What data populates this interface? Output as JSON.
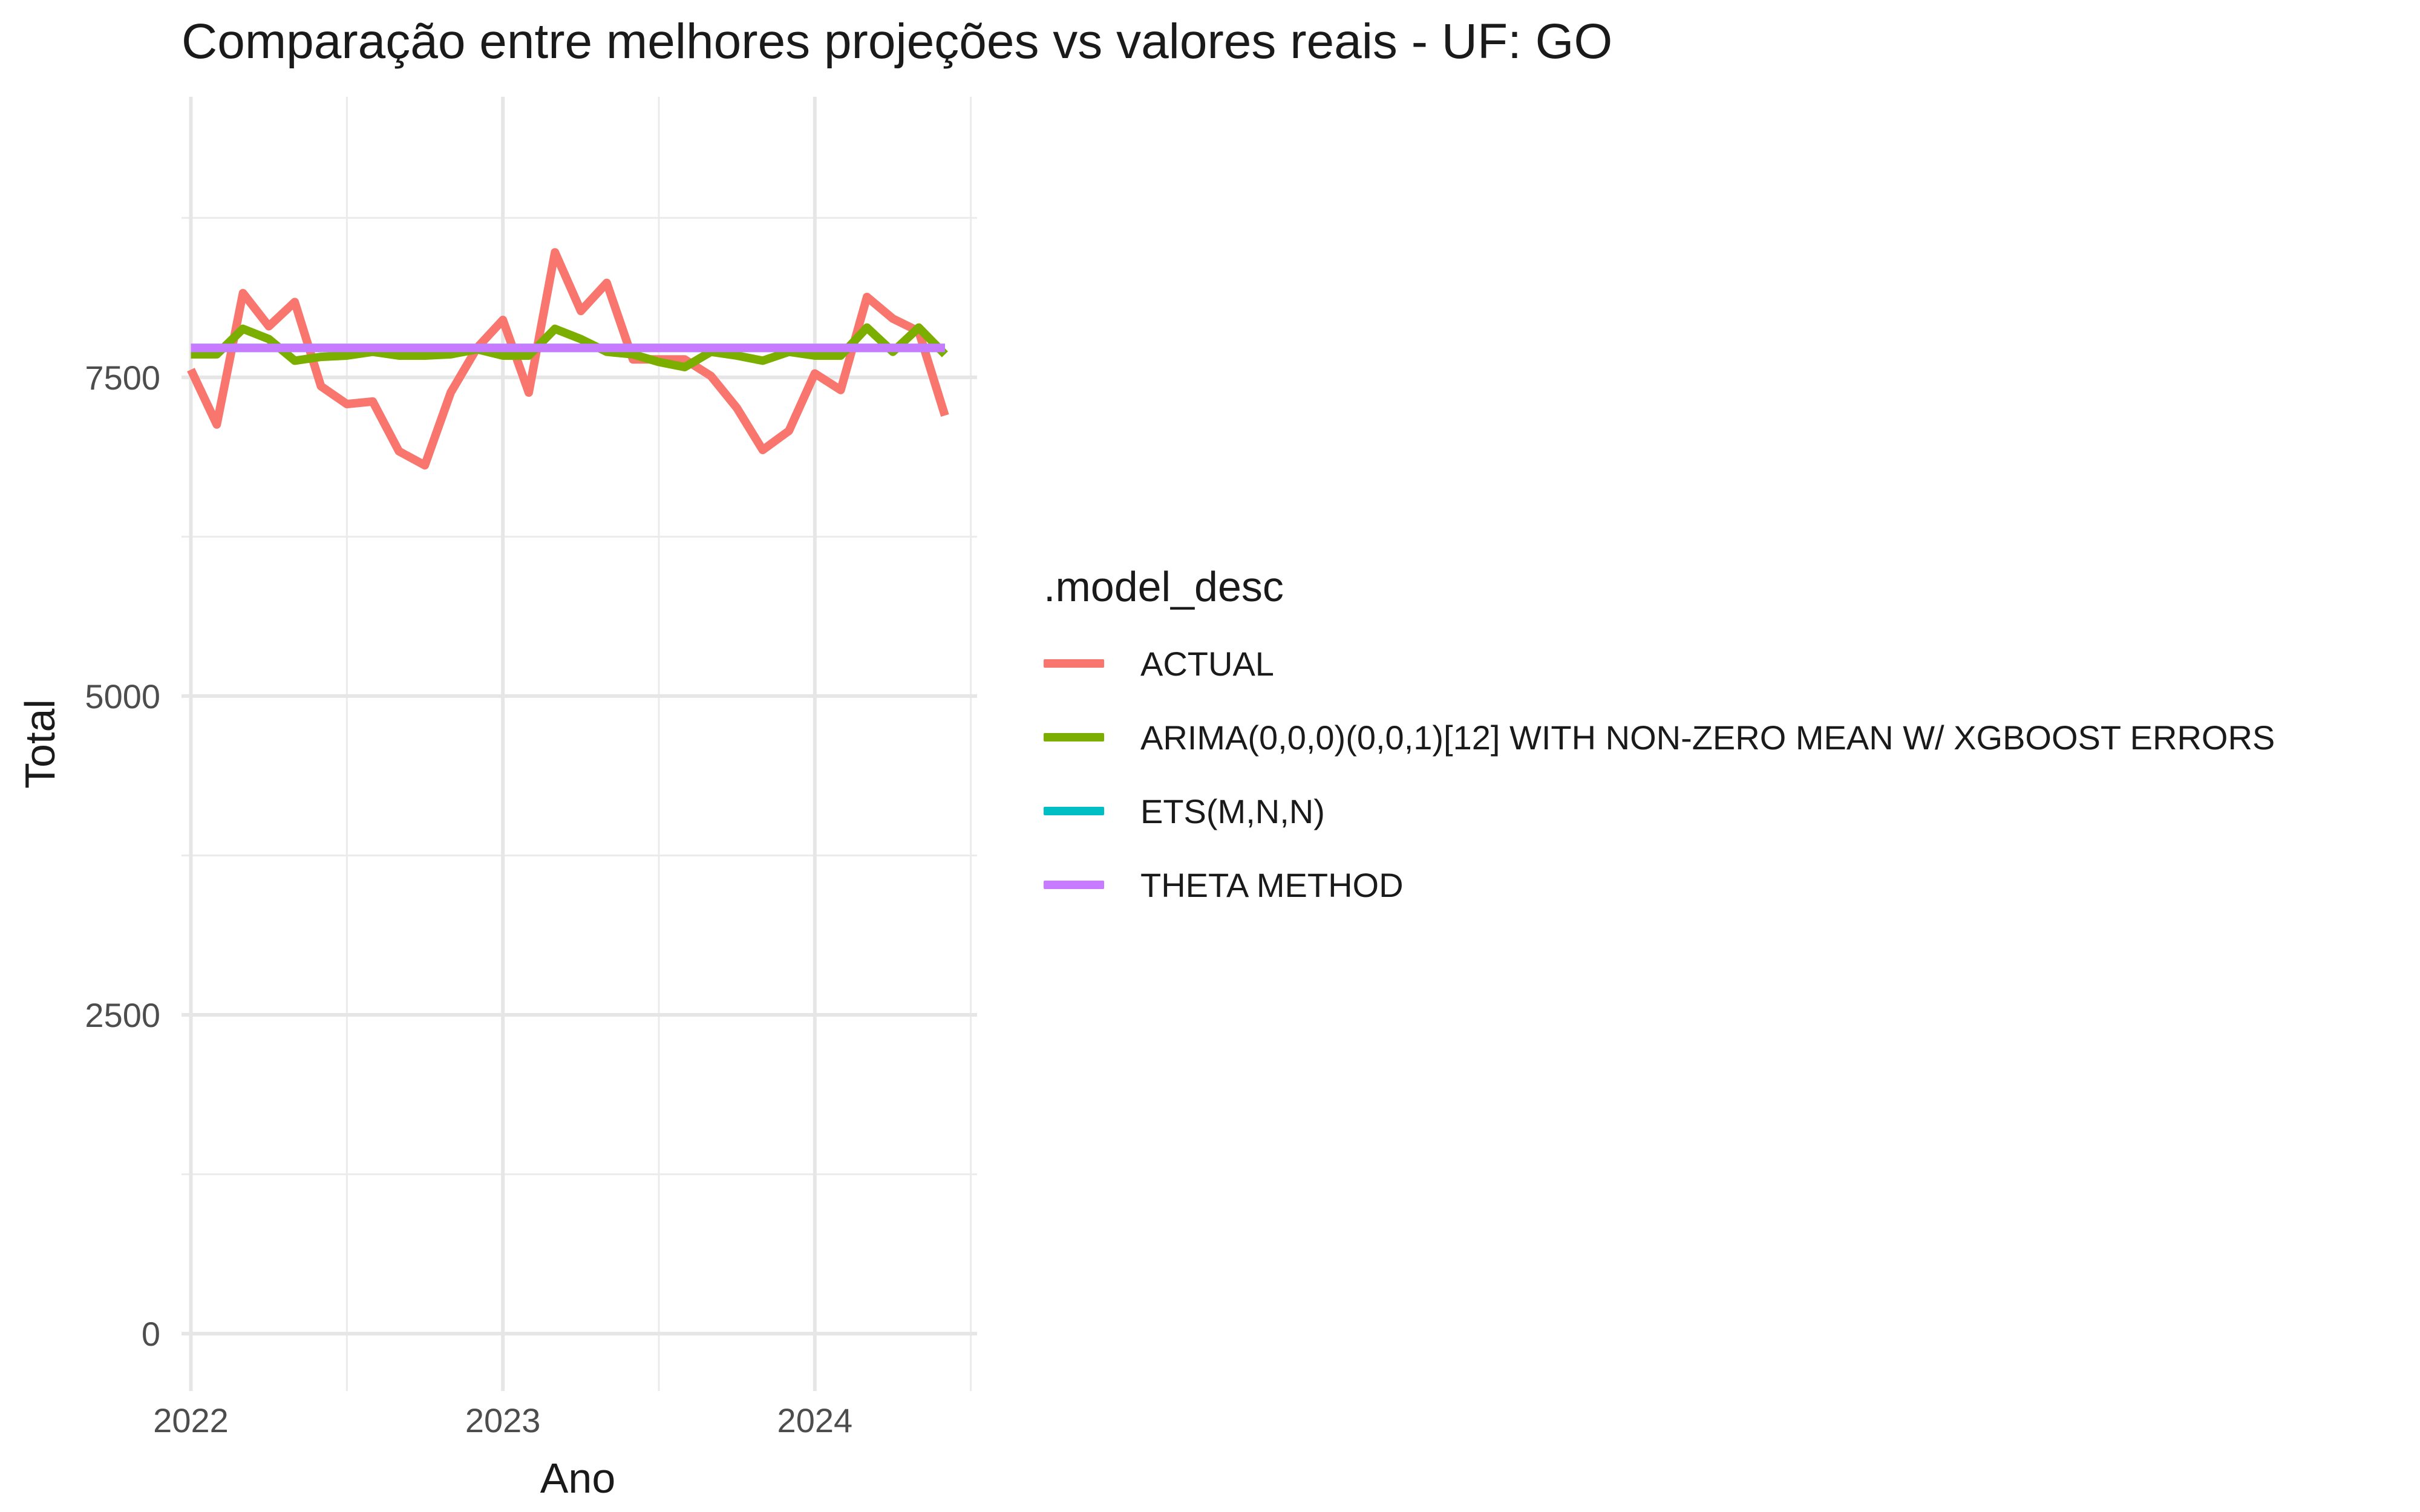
{
  "chart_data": {
    "type": "line",
    "title": "Comparação entre melhores projeções vs valores reais - UF: GO",
    "xlabel": "Ano",
    "ylabel": "Total",
    "xlim": [
      2021.97,
      2024.52
    ],
    "ylim": [
      -450,
      9700
    ],
    "x_ticks": [
      2022,
      2023,
      2024
    ],
    "y_ticks": [
      0,
      2500,
      5000,
      7500
    ],
    "x_tick_labels": [
      "2022",
      "2023",
      "2024"
    ],
    "y_tick_labels": [
      "0",
      "2500",
      "5000",
      "7500"
    ],
    "grid": true,
    "legend_title": ".model_desc",
    "legend_position": "right",
    "series": [
      {
        "name": "ACTUAL",
        "color": "#F8766D",
        "x": [
          2022.0,
          2022.083,
          2022.167,
          2022.25,
          2022.333,
          2022.417,
          2022.5,
          2022.583,
          2022.667,
          2022.75,
          2022.833,
          2022.917,
          2023.0,
          2023.083,
          2023.167,
          2023.25,
          2023.333,
          2023.417,
          2023.5,
          2023.583,
          2023.667,
          2023.75,
          2023.833,
          2023.917,
          2024.0,
          2024.083,
          2024.167,
          2024.25,
          2024.333,
          2024.417
        ],
        "y": [
          7560,
          7130,
          8160,
          7900,
          8090,
          7430,
          7290,
          7310,
          6920,
          6810,
          7380,
          7730,
          7950,
          7380,
          8480,
          8020,
          8240,
          7640,
          7640,
          7640,
          7510,
          7260,
          6930,
          7080,
          7530,
          7400,
          8130,
          7960,
          7860,
          7200
        ]
      },
      {
        "name": "ARIMA(0,0,0)(0,0,1)[12] WITH NON-ZERO MEAN W/ XGBOOST ERRORS",
        "color": "#7CAE00",
        "x": [
          2022.0,
          2022.083,
          2022.167,
          2022.25,
          2022.333,
          2022.417,
          2022.5,
          2022.583,
          2022.667,
          2022.75,
          2022.833,
          2022.917,
          2023.0,
          2023.083,
          2023.167,
          2023.25,
          2023.333,
          2023.417,
          2023.5,
          2023.583,
          2023.667,
          2023.75,
          2023.833,
          2023.917,
          2024.0,
          2024.083,
          2024.167,
          2024.25,
          2024.333,
          2024.417
        ],
        "y": [
          7680,
          7680,
          7880,
          7800,
          7630,
          7660,
          7670,
          7700,
          7670,
          7670,
          7680,
          7720,
          7670,
          7670,
          7880,
          7800,
          7700,
          7680,
          7620,
          7580,
          7700,
          7670,
          7630,
          7700,
          7670,
          7670,
          7890,
          7700,
          7890,
          7680
        ]
      },
      {
        "name": "ETS(M,N,N)",
        "color": "#00BFC4",
        "x": [
          2022.0,
          2024.417
        ],
        "y": [
          7730,
          7730
        ]
      },
      {
        "name": "THETA METHOD",
        "color": "#C77CFF",
        "x": [
          2022.0,
          2024.417
        ],
        "y": [
          7730,
          7730
        ]
      }
    ]
  }
}
